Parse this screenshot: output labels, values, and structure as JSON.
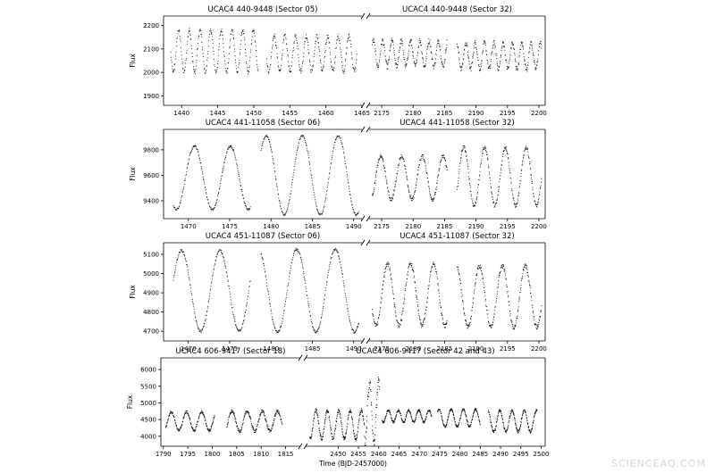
{
  "watermark": "SCIENCEAQ.COM",
  "figure": {
    "xlabel_shared": "Time (BJD-2457000)",
    "ylabel": "Flux"
  },
  "chart_data": [
    {
      "type": "scatter",
      "ylabel": "Flux",
      "ylim": [
        1860,
        2240
      ],
      "yticks": [
        1900,
        2000,
        2100,
        2200
      ],
      "panels": [
        {
          "title": "UCAC4 440-9448 (Sector 05)",
          "xlim": [
            1437.5,
            1465
          ],
          "xticks": [
            1440,
            1445,
            1450,
            1455,
            1460,
            1465
          ],
          "segments": [
            {
              "start": 1438.5,
              "end": 1450.6,
              "baseline": 2090,
              "amp": 90,
              "period": 1.48,
              "phase": 0.55,
              "noise": 8
            },
            {
              "start": 1451.8,
              "end": 1464.3,
              "baseline": 2080,
              "amp": 75,
              "period": 1.48,
              "phase": 0.6,
              "noise": 10
            }
          ]
        },
        {
          "title": "UCAC4 440-9448 (Sector 32)",
          "xlim": [
            2173,
            2201
          ],
          "xticks": [
            2175,
            2180,
            2185,
            2190,
            2195,
            2200
          ],
          "segments": [
            {
              "start": 2173.5,
              "end": 2185.4,
              "baseline": 2080,
              "amp": 55,
              "period": 1.48,
              "phase": 0.55,
              "noise": 12
            },
            {
              "start": 2187.0,
              "end": 2200.4,
              "baseline": 2070,
              "amp": 55,
              "period": 1.48,
              "phase": 0.6,
              "noise": 12
            }
          ]
        }
      ]
    },
    {
      "type": "scatter",
      "ylabel": "Flux",
      "ylim": [
        9260,
        9960
      ],
      "yticks": [
        9400,
        9600,
        9800
      ],
      "panels": [
        {
          "title": "UCAC4 441-11058 (Sector 06)",
          "xlim": [
            1467,
            1491
          ],
          "xticks": [
            1470,
            1475,
            1480,
            1485,
            1490
          ],
          "segments": [
            {
              "start": 1468.2,
              "end": 1477.5,
              "baseline": 9580,
              "amp": 250,
              "period": 4.35,
              "phase": 0.15,
              "noise": 8
            },
            {
              "start": 1478.8,
              "end": 1490.6,
              "baseline": 9600,
              "amp": 310,
              "period": 4.35,
              "phase": 0.15,
              "noise": 8
            }
          ]
        },
        {
          "title": "UCAC4 441-11058 (Sector 32)",
          "xlim": [
            2173,
            2201
          ],
          "xticks": [
            2175,
            2180,
            2185,
            2190,
            2195,
            2200
          ],
          "segments": [
            {
              "start": 2173.5,
              "end": 2185.4,
              "baseline": 9580,
              "amp": 170,
              "period": 3.3,
              "phase": 0.2,
              "noise": 15
            },
            {
              "start": 2187.0,
              "end": 2200.4,
              "baseline": 9590,
              "amp": 230,
              "period": 3.3,
              "phase": 0.2,
              "noise": 15
            }
          ]
        }
      ]
    },
    {
      "type": "scatter",
      "ylabel": "Flux",
      "ylim": [
        4650,
        5160
      ],
      "yticks": [
        4700,
        4800,
        4900,
        5000,
        5100
      ],
      "panels": [
        {
          "title": "UCAC4 451-11087 (Sector 06)",
          "xlim": [
            1467,
            1491
          ],
          "xticks": [
            1470,
            1475,
            1480,
            1485,
            1490
          ],
          "segments": [
            {
              "start": 1468.2,
              "end": 1477.5,
              "baseline": 4910,
              "amp": 210,
              "period": 4.65,
              "phase": 0.3,
              "noise": 6
            },
            {
              "start": 1478.8,
              "end": 1490.6,
              "baseline": 4910,
              "amp": 215,
              "period": 4.65,
              "phase": 0.3,
              "noise": 6
            }
          ]
        },
        {
          "title": "UCAC4 451-11087 (Sector 32)",
          "xlim": [
            2173,
            2201
          ],
          "xticks": [
            2175,
            2180,
            2185,
            2190,
            2195,
            2200
          ],
          "segments": [
            {
              "start": 2173.5,
              "end": 2185.4,
              "baseline": 4890,
              "amp": 160,
              "period": 3.65,
              "phase": 0.1,
              "noise": 12
            },
            {
              "start": 2187.0,
              "end": 2200.4,
              "baseline": 4880,
              "amp": 160,
              "period": 3.65,
              "phase": 0.1,
              "noise": 12
            }
          ]
        }
      ]
    },
    {
      "type": "scatter",
      "ylabel": "Flux",
      "ylim": [
        3700,
        6350
      ],
      "yticks": [
        4000,
        4500,
        5000,
        5500,
        6000
      ],
      "xlabel": "Time (BJD-2457000)",
      "panels": [
        {
          "title": "UCAC4 606-9417 (Sector 18)",
          "xlim": [
            1789.5,
            1818
          ],
          "xticks": [
            1790,
            1795,
            1800,
            1805,
            1810,
            1815
          ],
          "segments": [
            {
              "start": 1790.5,
              "end": 1800.5,
              "baseline": 4450,
              "amp": 280,
              "period": 3.1,
              "phase": 0.3,
              "noise": 40
            },
            {
              "start": 1803.0,
              "end": 1814.3,
              "baseline": 4450,
              "amp": 300,
              "period": 3.1,
              "phase": 0.3,
              "noise": 50
            }
          ]
        },
        {
          "title": "UCAC4 606-9417 (Sector 42 and 43)",
          "xlim": [
            2442,
            2501
          ],
          "xticks": [
            2450,
            2455,
            2460,
            2465,
            2470,
            2475,
            2480,
            2485,
            2490,
            2495,
            2500
          ],
          "segments": [
            {
              "start": 2443.0,
              "end": 2456.5,
              "baseline": 4350,
              "amp": 420,
              "period": 2.8,
              "phase": 0.2,
              "noise": 60
            },
            {
              "start": 2456.5,
              "end": 2460.2,
              "baseline": 4700,
              "amp": 900,
              "period": 2.2,
              "phase": 0.1,
              "noise": 200
            },
            {
              "start": 2460.8,
              "end": 2473.0,
              "baseline": 4600,
              "amp": 180,
              "period": 2.5,
              "phase": 0.3,
              "noise": 30
            },
            {
              "start": 2474.5,
              "end": 2485.0,
              "baseline": 4550,
              "amp": 260,
              "period": 3.0,
              "phase": 0.3,
              "noise": 30
            },
            {
              "start": 2487.0,
              "end": 2499.0,
              "baseline": 4450,
              "amp": 320,
              "period": 3.0,
              "phase": 0.3,
              "noise": 40
            }
          ]
        }
      ]
    }
  ]
}
